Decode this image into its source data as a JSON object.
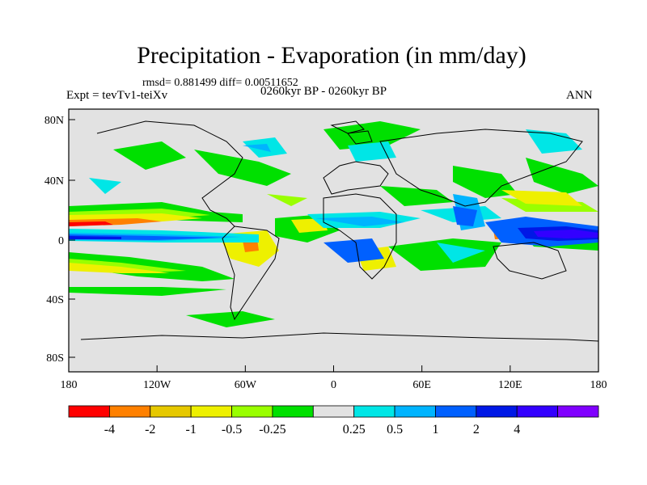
{
  "title": "Precipitation - Evaporation (in mm/day)",
  "stats": "rmsd= 0.881499 diff= 0.00511652",
  "experiment": "Expt = tevTv1-teiXv",
  "period": "0260kyr BP - 0260kyr BP",
  "season": "ANN",
  "lat_labels": [
    "80N",
    "40N",
    "0",
    "40S",
    "80S"
  ],
  "lon_labels": [
    "180",
    "120W",
    "60W",
    "0",
    "60E",
    "120E",
    "180"
  ],
  "colorbar": {
    "colors": [
      "#ff0000",
      "#ff8000",
      "#e6c800",
      "#eef000",
      "#99ff00",
      "#00e000",
      "#e2e2e2",
      "#00e6e6",
      "#00b4ff",
      "#0060ff",
      "#0018e6",
      "#3300ff",
      "#8000ff"
    ],
    "labels": [
      "-4",
      "-2",
      "-1",
      "-0.5",
      "-0.25",
      "0.25",
      "0.5",
      "1",
      "2",
      "4"
    ]
  },
  "colors": {
    "background": "#e2e2e2",
    "coast": "#000000"
  }
}
